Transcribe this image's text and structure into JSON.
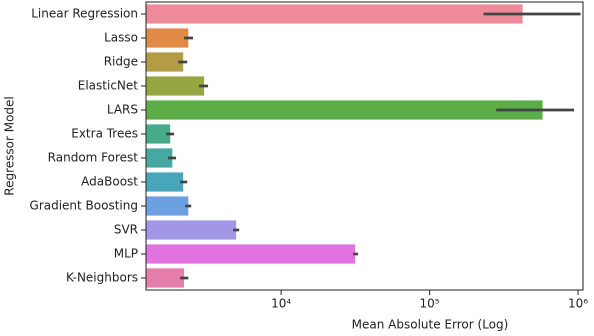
{
  "chart_data": {
    "type": "bar",
    "orientation": "horizontal",
    "x_label": "Mean Absolute Error (Log)",
    "y_label": "Regressor Model",
    "categories": [
      "Linear Regression",
      "Lasso",
      "Ridge",
      "ElasticNet",
      "LARS",
      "Extra Trees",
      "Random Forest",
      "AdaBoost",
      "Gradient Boosting",
      "SVR",
      "MLP",
      "K-Neighbors"
    ],
    "values": [
      423000,
      2370,
      2190,
      3030,
      577000,
      1790,
      1850,
      2190,
      2370,
      4980,
      31500,
      2220
    ],
    "ci_low": [
      231000,
      2220,
      2030,
      2800,
      281000,
      1680,
      1730,
      2090,
      2260,
      4750,
      30600,
      2090
    ],
    "ci_high": [
      1040000,
      2550,
      2330,
      3220,
      940000,
      1900,
      1960,
      2330,
      2480,
      5220,
      32980,
      2370
    ],
    "colors": [
      "#ef8a9a",
      "#e08a45",
      "#b39d44",
      "#98a642",
      "#5cad48",
      "#47aa8a",
      "#46a9a1",
      "#48a6bb",
      "#6ca0e0",
      "#a296e6",
      "#e272e0",
      "#e57ca9"
    ],
    "xscale": "log",
    "xlim": [
      1230,
      1080000
    ],
    "xticks": [
      {
        "value": 10000,
        "label": "10⁴"
      },
      {
        "value": 100000,
        "label": "10⁵"
      },
      {
        "value": 1000000,
        "label": "10⁶"
      }
    ]
  }
}
